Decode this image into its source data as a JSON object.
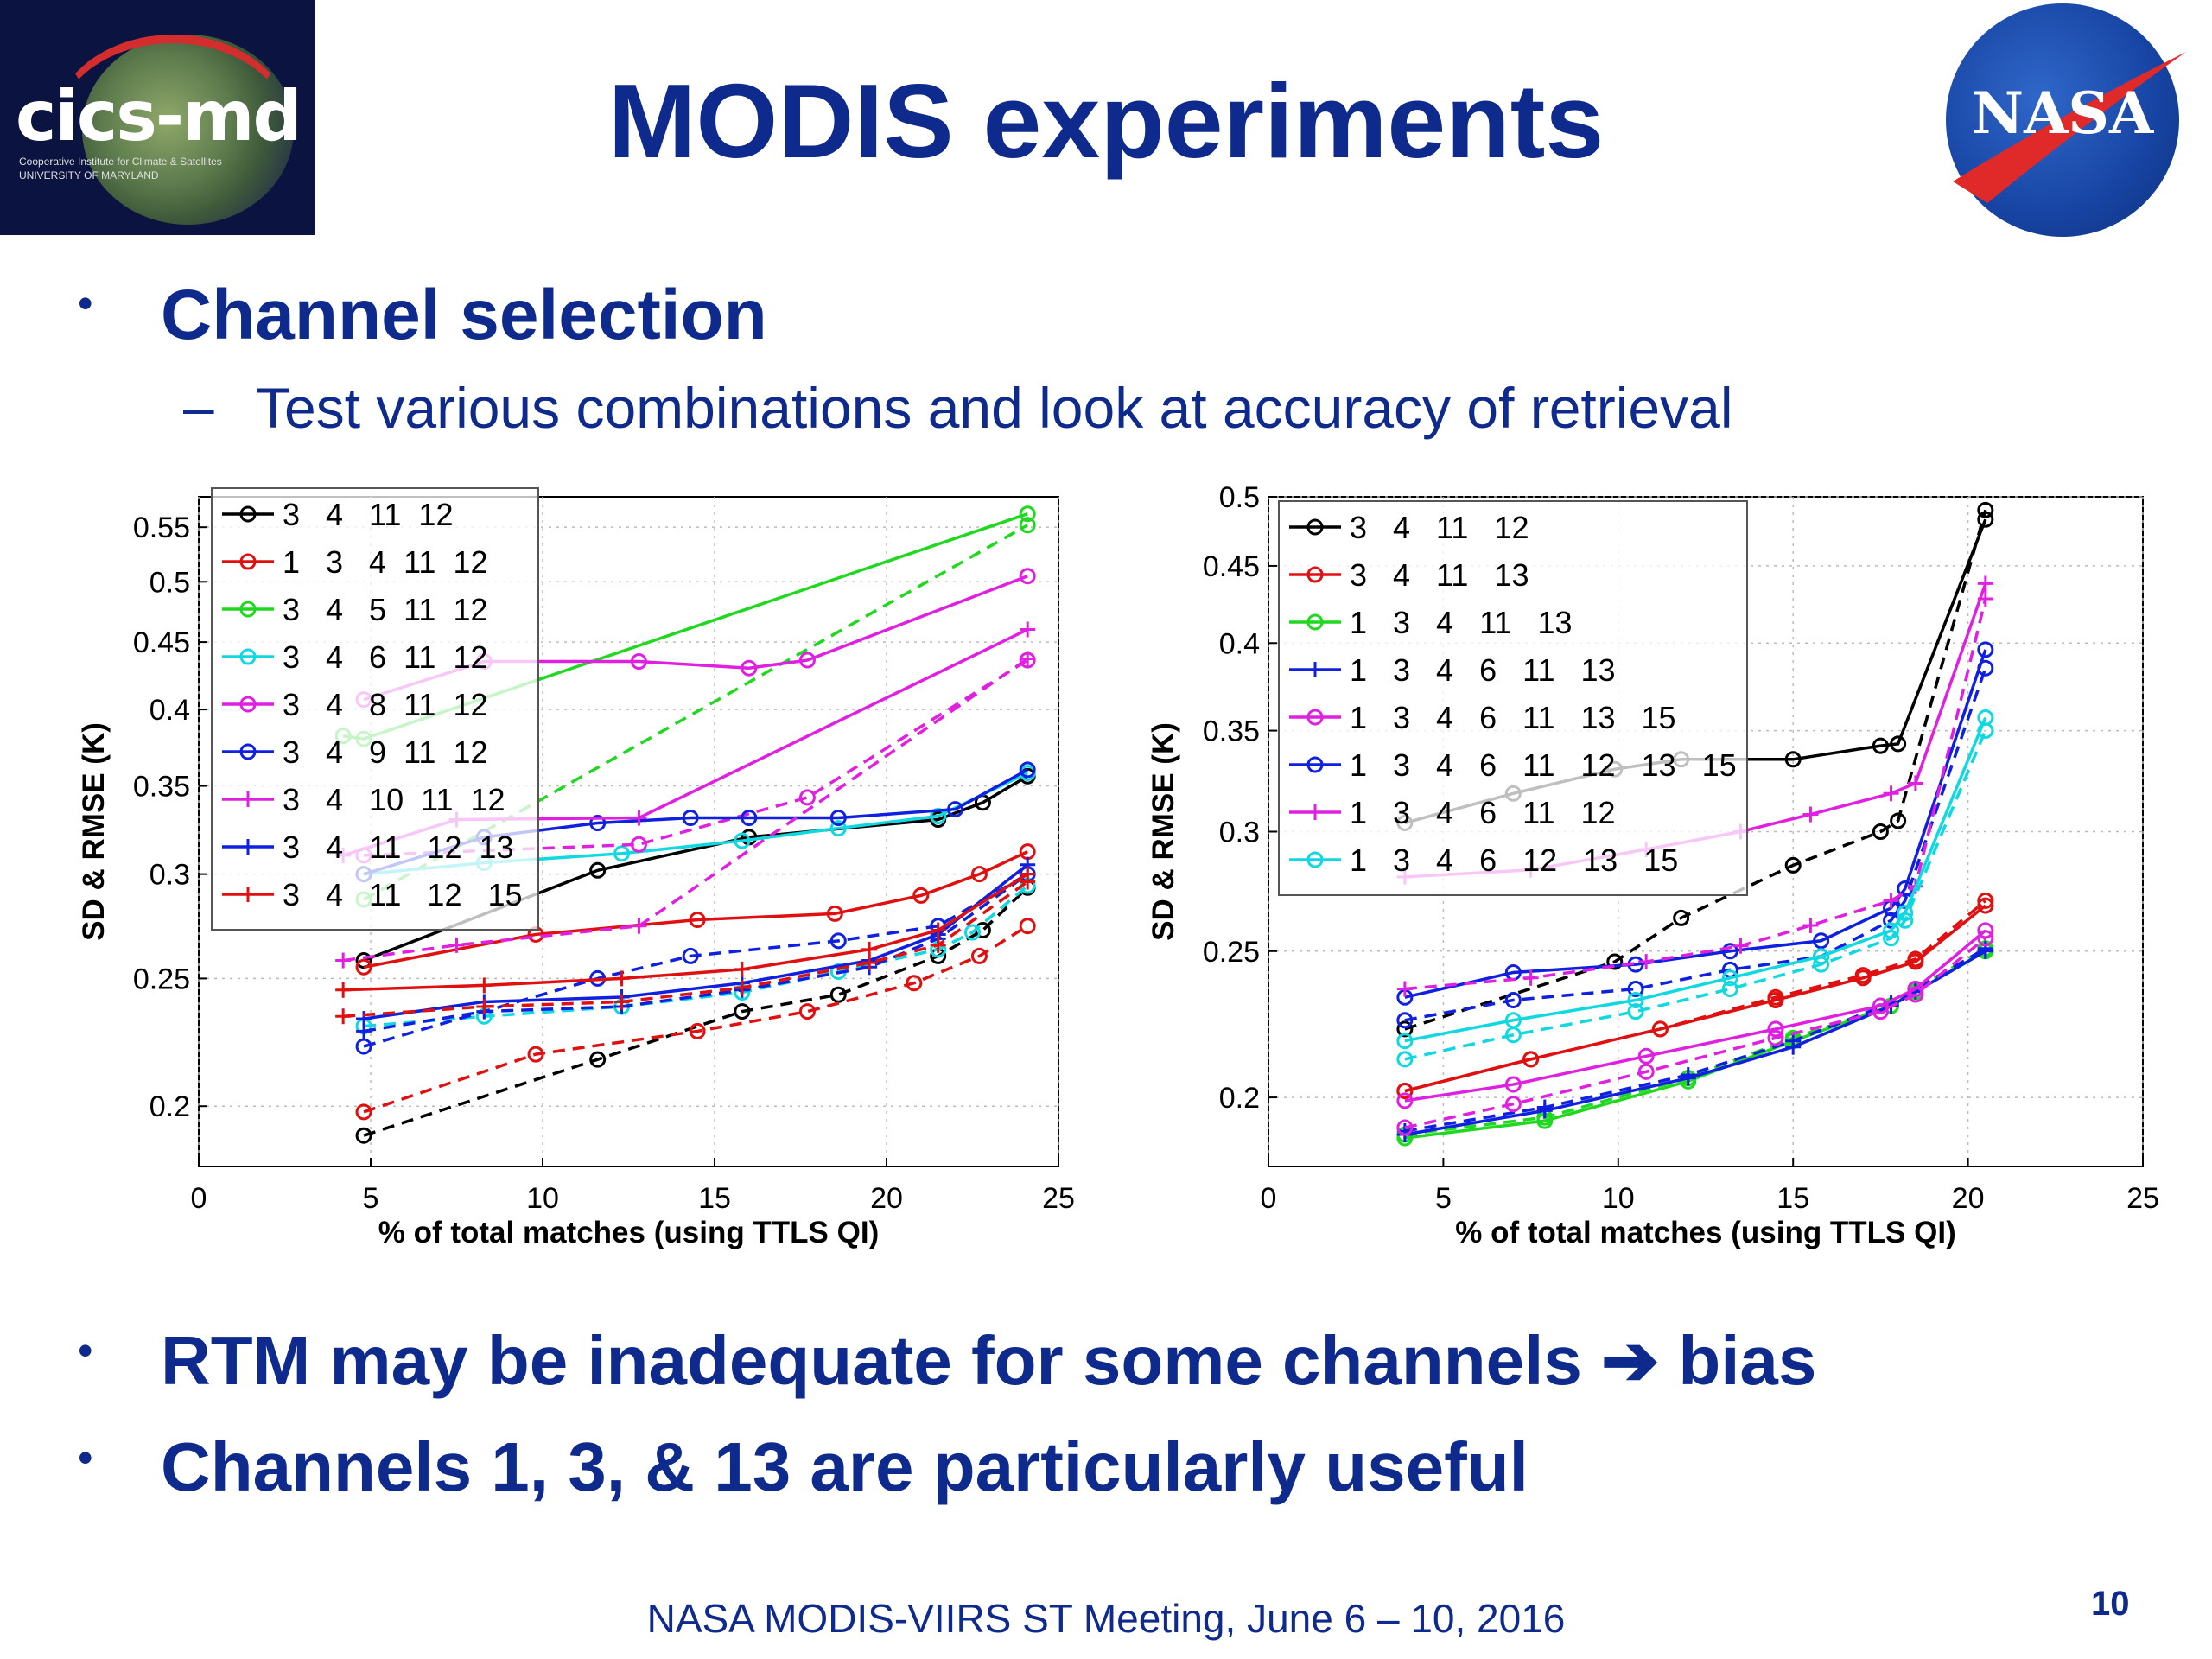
{
  "slide": {
    "title": "MODIS experiments",
    "bullets": [
      {
        "text": "Channel selection",
        "subbullets": [
          "Test various combinations and look at accuracy of retrieval"
        ]
      },
      {
        "text": "RTM may be inadequate for some channels ➔ bias"
      },
      {
        "text": "Channels 1, 3, & 13 are particularly useful"
      }
    ],
    "bullet_glyph": "•",
    "dash_glyph": "–",
    "footer": "NASA MODIS-VIIRS ST Meeting, June 6 – 10, 2016",
    "page_number": "10"
  },
  "logos": {
    "cics": {
      "name": "cics-md",
      "line1": "Cooperative Institute for Climate & Satellites",
      "line2": "UNIVERSITY OF MARYLAND"
    },
    "nasa": {
      "name": "NASA"
    }
  },
  "colors": {
    "title": "#0e2a8c",
    "cics_bg": "#0b1340",
    "nasa_blue": "#1744a3",
    "nasa_red": "#e02a2a"
  },
  "chart_data": [
    {
      "type": "line",
      "title": "",
      "xlabel": "% of total matches (using TTLS QI)",
      "ylabel": "SD & RMSE (K)",
      "xlim": [
        0,
        25
      ],
      "ylim": [
        0.18,
        0.58
      ],
      "yscale": "log",
      "xticks": [
        0,
        5,
        10,
        15,
        20,
        25
      ],
      "yticks": [
        0.2,
        0.25,
        0.3,
        0.35,
        0.4,
        0.45,
        0.5,
        0.55
      ],
      "grid": true,
      "legend_position": "top-left",
      "line_styles": [
        "solid",
        "dashed"
      ],
      "series": [
        {
          "name": "3   4   11  12",
          "color": "#000000",
          "marker": "circle",
          "solid": {
            "x": [
              4.8,
              11.6,
              16.0,
              21.5,
              22.8,
              24.1
            ],
            "y": [
              0.258,
              0.302,
              0.32,
              0.33,
              0.34,
              0.356
            ]
          },
          "dashed": {
            "x": [
              4.8,
              11.6,
              15.8,
              18.6,
              21.5,
              22.8,
              24.1
            ],
            "y": [
              0.19,
              0.217,
              0.236,
              0.243,
              0.26,
              0.272,
              0.293
            ]
          }
        },
        {
          "name": "1   3   4  11  12",
          "color": "#e01010",
          "marker": "circle",
          "solid": {
            "x": [
              4.8,
              9.8,
              14.5,
              18.5,
              21.0,
              22.7,
              24.1
            ],
            "y": [
              0.255,
              0.27,
              0.277,
              0.28,
              0.289,
              0.3,
              0.312
            ]
          },
          "dashed": {
            "x": [
              4.8,
              9.8,
              14.5,
              17.7,
              20.8,
              22.7,
              24.1
            ],
            "y": [
              0.198,
              0.219,
              0.228,
              0.236,
              0.248,
              0.26,
              0.274
            ]
          }
        },
        {
          "name": "3   4   5  11  12",
          "color": "#20d820",
          "marker": "circle",
          "solid": {
            "x": [
              4.2,
              4.8,
              24.1
            ],
            "y": [
              0.382,
              0.38,
              0.563
            ]
          },
          "dashed": {
            "x": [
              4.8,
              24.1
            ],
            "y": [
              0.287,
              0.552
            ]
          }
        },
        {
          "name": "3   4   6  11  12",
          "color": "#10d8e0",
          "marker": "circle",
          "solid": {
            "x": [
              4.8,
              8.3,
              12.3,
              15.8,
              18.6,
              21.5,
              24.1
            ],
            "y": [
              0.3,
              0.306,
              0.311,
              0.318,
              0.325,
              0.332,
              0.358
            ]
          },
          "dashed": {
            "x": [
              4.8,
              8.3,
              12.3,
              15.8,
              18.6,
              21.5,
              22.5,
              24.1
            ],
            "y": [
              0.23,
              0.234,
              0.238,
              0.244,
              0.253,
              0.263,
              0.271,
              0.294
            ]
          }
        },
        {
          "name": "3   4   8  11  12",
          "color": "#e020e0",
          "marker": "circle",
          "solid": {
            "x": [
              4.8,
              8.3,
              12.8,
              16.0,
              17.7,
              24.1
            ],
            "y": [
              0.407,
              0.435,
              0.435,
              0.43,
              0.436,
              0.505
            ]
          },
          "dashed": {
            "x": [
              4.8,
              12.8,
              17.7,
              24.1
            ],
            "y": [
              0.31,
              0.316,
              0.343,
              0.436
            ]
          }
        },
        {
          "name": "3   4   9  11  12",
          "color": "#1020e0",
          "marker": "circle",
          "solid": {
            "x": [
              4.8,
              8.3,
              11.6,
              14.3,
              16.0,
              18.6,
              22.0,
              24.1
            ],
            "y": [
              0.3,
              0.32,
              0.328,
              0.331,
              0.331,
              0.331,
              0.336,
              0.36
            ]
          },
          "dashed": {
            "x": [
              4.8,
              11.6,
              14.3,
              18.6,
              21.5,
              24.1
            ],
            "y": [
              0.222,
              0.25,
              0.26,
              0.267,
              0.274,
              0.3
            ]
          }
        },
        {
          "name": "3   4   10  11  12",
          "color": "#e020e0",
          "marker": "plus",
          "solid": {
            "x": [
              4.2,
              7.5,
              12.8,
              24.1
            ],
            "y": [
              0.31,
              0.33,
              0.331,
              0.46
            ]
          },
          "dashed": {
            "x": [
              4.2,
              7.5,
              12.8,
              24.1
            ],
            "y": [
              0.258,
              0.265,
              0.274,
              0.437
            ]
          }
        },
        {
          "name": "3   4   11   12  13",
          "color": "#1020e0",
          "marker": "plus",
          "solid": {
            "x": [
              4.8,
              8.3,
              12.3,
              15.8,
              19.5,
              21.5,
              24.1
            ],
            "y": [
              0.233,
              0.24,
              0.242,
              0.248,
              0.258,
              0.27,
              0.305
            ]
          },
          "dashed": {
            "x": [
              4.8,
              8.3,
              12.3,
              15.8,
              19.5,
              21.5,
              24.1
            ],
            "y": [
              0.228,
              0.236,
              0.238,
              0.245,
              0.255,
              0.268,
              0.3
            ]
          }
        },
        {
          "name": "3   4   11   12   15",
          "color": "#e01010",
          "marker": "plus",
          "solid": {
            "x": [
              4.2,
              8.3,
              12.3,
              15.8,
              19.5,
              21.5,
              24.1
            ],
            "y": [
              0.245,
              0.247,
              0.25,
              0.254,
              0.263,
              0.272,
              0.3
            ]
          },
          "dashed": {
            "x": [
              4.2,
              8.3,
              12.3,
              15.8,
              19.5,
              21.5,
              24.1
            ],
            "y": [
              0.234,
              0.238,
              0.24,
              0.246,
              0.257,
              0.265,
              0.296
            ]
          }
        }
      ]
    },
    {
      "type": "line",
      "title": "",
      "xlabel": "% of total matches (using TTLS QI)",
      "ylabel": "SD & RMSE (K)",
      "xlim": [
        0,
        25
      ],
      "ylim": [
        0.18,
        0.5
      ],
      "yscale": "log",
      "xticks": [
        0,
        5,
        10,
        15,
        20,
        25
      ],
      "yticks": [
        0.2,
        0.25,
        0.3,
        0.35,
        0.4,
        0.45,
        0.5
      ],
      "grid": true,
      "legend_position": "top-left",
      "line_styles": [
        "solid",
        "dashed"
      ],
      "series": [
        {
          "name": "3   4   11   12",
          "color": "#000000",
          "marker": "circle",
          "solid": {
            "x": [
              3.9,
              7.0,
              9.9,
              11.8,
              15.0,
              17.5,
              18.0,
              20.5
            ],
            "y": [
              0.304,
              0.318,
              0.33,
              0.335,
              0.335,
              0.342,
              0.343,
              0.483
            ]
          },
          "dashed": {
            "x": [
              3.9,
              9.9,
              11.8,
              15.0,
              17.5,
              18.0,
              20.5
            ],
            "y": [
              0.222,
              0.246,
              0.263,
              0.285,
              0.3,
              0.305,
              0.49
            ]
          }
        },
        {
          "name": "3   4   11   13",
          "color": "#e01010",
          "marker": "circle",
          "solid": {
            "x": [
              3.9,
              7.5,
              11.2,
              14.5,
              17.0,
              18.5,
              20.5
            ],
            "y": [
              0.202,
              0.212,
              0.222,
              0.232,
              0.24,
              0.246,
              0.268
            ]
          },
          "dashed": {
            "x": [
              3.9,
              7.5,
              11.2,
              14.5,
              17.0,
              18.5,
              20.5
            ],
            "y": [
              0.202,
              0.212,
              0.222,
              0.233,
              0.241,
              0.247,
              0.27
            ]
          }
        },
        {
          "name": "1   3   4   11   13",
          "color": "#20d820",
          "marker": "circle",
          "solid": {
            "x": [
              3.9,
              7.9,
              12.0,
              15.0,
              17.8,
              18.5,
              20.5
            ],
            "y": [
              0.188,
              0.193,
              0.205,
              0.218,
              0.23,
              0.235,
              0.25
            ]
          },
          "dashed": {
            "x": [
              3.9,
              7.9,
              12.0,
              15.0,
              17.8,
              18.5,
              20.5
            ],
            "y": [
              0.189,
              0.194,
              0.206,
              0.219,
              0.23,
              0.236,
              0.251
            ]
          }
        },
        {
          "name": "1   3   4   6   11   13",
          "color": "#1020e0",
          "marker": "plus",
          "solid": {
            "x": [
              3.9,
              7.9,
              12.0,
              15.0,
              17.8,
              18.5,
              20.5
            ],
            "y": [
              0.189,
              0.196,
              0.206,
              0.216,
              0.23,
              0.235,
              0.25
            ]
          },
          "dashed": {
            "x": [
              3.9,
              7.9,
              12.0,
              15.0,
              17.8,
              18.5,
              20.5
            ],
            "y": [
              0.19,
              0.197,
              0.207,
              0.218,
              0.231,
              0.236,
              0.251
            ]
          }
        },
        {
          "name": "1   3   4   6   11   13   15",
          "color": "#e020e0",
          "marker": "circle",
          "solid": {
            "x": [
              3.9,
              7.0,
              10.8,
              14.5,
              17.5,
              18.5,
              20.5
            ],
            "y": [
              0.199,
              0.204,
              0.213,
              0.222,
              0.23,
              0.236,
              0.258
            ]
          },
          "dashed": {
            "x": [
              3.9,
              7.0,
              10.8,
              14.5,
              17.5,
              18.5,
              20.5
            ],
            "y": [
              0.191,
              0.198,
              0.208,
              0.219,
              0.228,
              0.234,
              0.255
            ]
          }
        },
        {
          "name": "1   3   4   6   11   12   13   15",
          "color": "#1020e0",
          "marker": "circle",
          "solid": {
            "x": [
              3.9,
              7.0,
              10.5,
              13.2,
              15.8,
              17.8,
              18.2,
              20.5
            ],
            "y": [
              0.233,
              0.242,
              0.245,
              0.25,
              0.254,
              0.267,
              0.275,
              0.396
            ]
          },
          "dashed": {
            "x": [
              3.9,
              7.0,
              10.5,
              13.2,
              15.8,
              17.8,
              18.2,
              20.5
            ],
            "y": [
              0.225,
              0.232,
              0.236,
              0.243,
              0.248,
              0.262,
              0.27,
              0.385
            ]
          }
        },
        {
          "name": "1   3   4   6   11   12",
          "color": "#e020e0",
          "marker": "plus",
          "solid": {
            "x": [
              3.9,
              7.5,
              10.8,
              13.5,
              15.5,
              17.8,
              18.5,
              20.5
            ],
            "y": [
              0.28,
              0.283,
              0.292,
              0.3,
              0.308,
              0.318,
              0.323,
              0.438
            ]
          },
          "dashed": {
            "x": [
              3.9,
              7.5,
              10.8,
              13.5,
              15.5,
              17.8,
              18.5,
              20.5
            ],
            "y": [
              0.236,
              0.24,
              0.246,
              0.252,
              0.26,
              0.27,
              0.276,
              0.428
            ]
          }
        },
        {
          "name": "1   3   4   6   12   13   15",
          "color": "#10d8e0",
          "marker": "circle",
          "solid": {
            "x": [
              3.9,
              7.0,
              10.5,
              13.2,
              15.8,
              17.8,
              18.2,
              20.5
            ],
            "y": [
              0.218,
              0.225,
              0.232,
              0.24,
              0.248,
              0.258,
              0.265,
              0.357
            ]
          },
          "dashed": {
            "x": [
              3.9,
              7.0,
              10.5,
              13.2,
              15.8,
              17.8,
              18.2,
              20.5
            ],
            "y": [
              0.212,
              0.22,
              0.228,
              0.236,
              0.245,
              0.255,
              0.262,
              0.35
            ]
          }
        }
      ]
    }
  ]
}
